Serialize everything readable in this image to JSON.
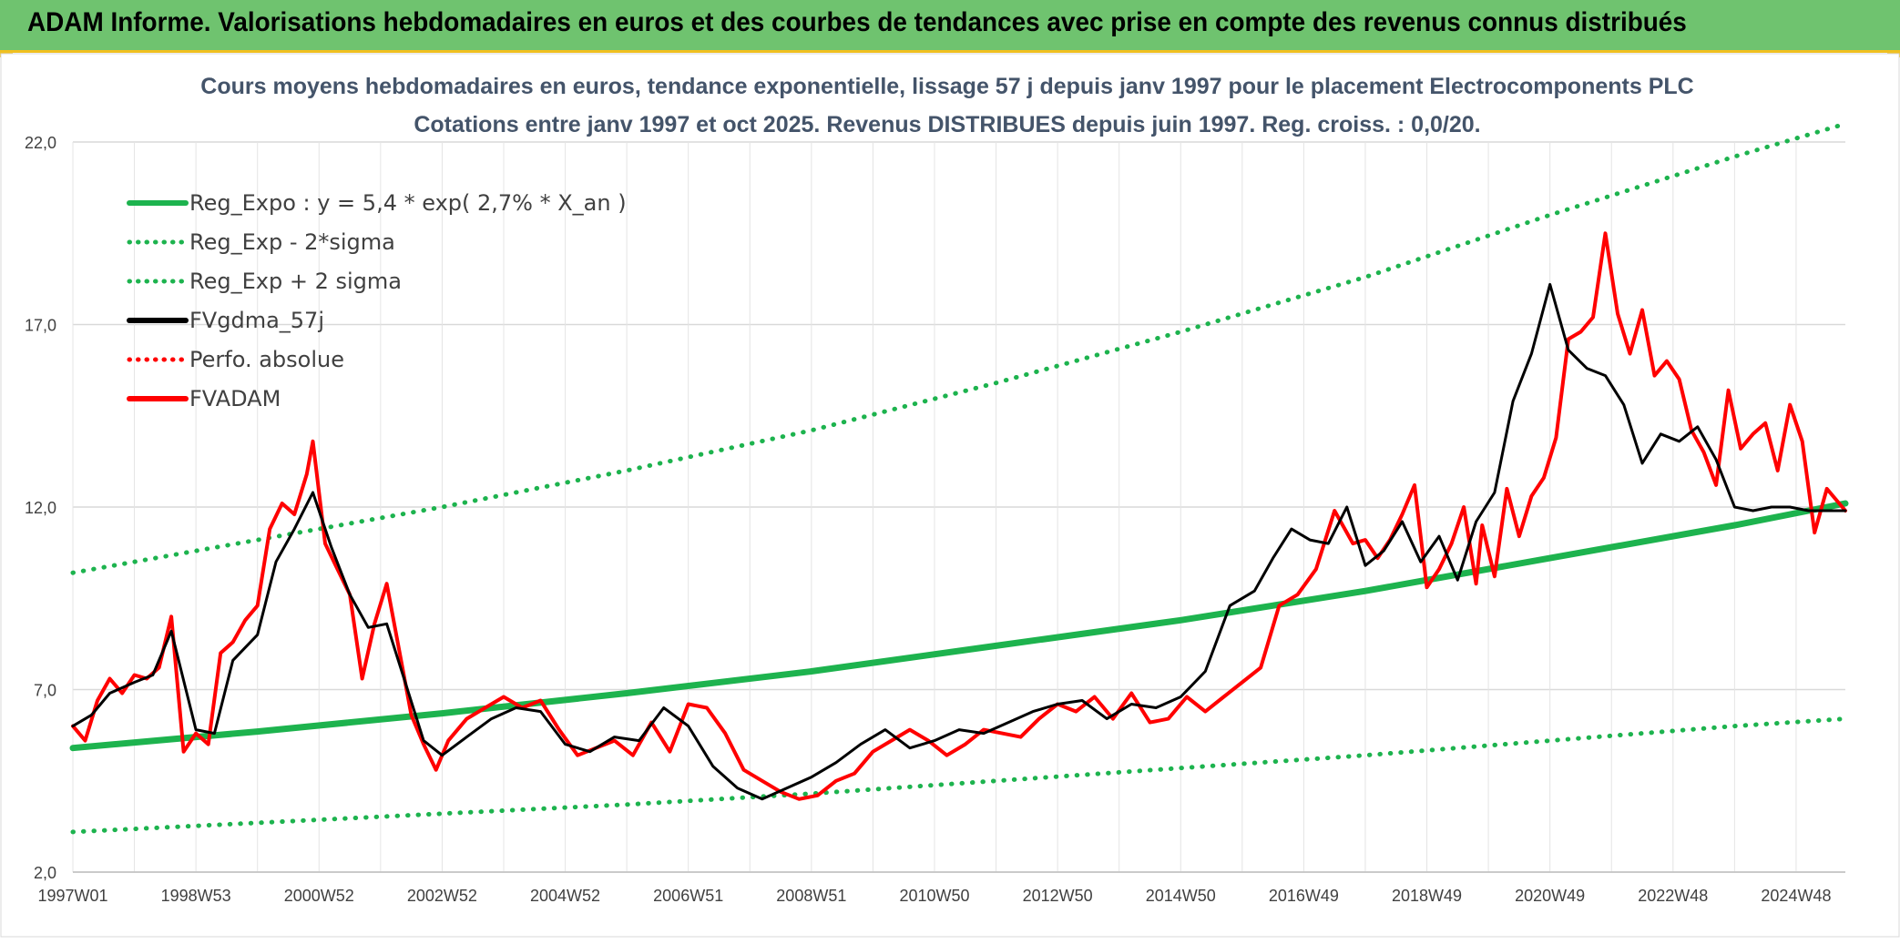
{
  "banner": {
    "title": "ADAM Informe. Valorisations hebdomadaires en euros et des courbes de tendances avec prise en compte des revenus connus distribués"
  },
  "colors": {
    "banner_bg": "#6fc36f",
    "accent": "#f0c020",
    "trend": "#1db34e",
    "band": "#1db34e",
    "smooth": "#000000",
    "price": "#ff0000",
    "title": "#44546a",
    "grid": "#d9d9d9"
  },
  "chart_data": {
    "type": "line",
    "title": "Cours moyens hebdomadaires en euros, tendance exponentielle, lissage 57 j depuis janv 1997 pour le placement Electrocomponents PLC",
    "subtitle": "Cotations entre janv 1997 et oct 2025. Revenus DISTRIBUES depuis juin 1997. Reg. croiss. : 0,0/20.",
    "xlabel": "",
    "ylabel": "",
    "xlim": [
      1997.0,
      2025.8
    ],
    "ylim": [
      2.0,
      22.0
    ],
    "yticks": [
      2.0,
      7.0,
      12.0,
      17.0,
      22.0
    ],
    "ytick_labels": [
      "2,0",
      "7,0",
      "12,0",
      "17,0",
      "22,0"
    ],
    "xticks": [
      1997.0,
      1999.0,
      2001.0,
      2003.0,
      2005.0,
      2007.0,
      2009.0,
      2011.0,
      2013.0,
      2015.0,
      2017.0,
      2019.0,
      2021.0,
      2023.0,
      2025.0
    ],
    "xtick_labels": [
      "1997W01",
      "1998W53",
      "2000W52",
      "2002W52",
      "2004W52",
      "2006W51",
      "2008W51",
      "2010W50",
      "2012W50",
      "2014W50",
      "2016W49",
      "2018W49",
      "2020W49",
      "2022W48",
      "2024W48"
    ],
    "grid": true,
    "legend_position": "top-left",
    "series": [
      {
        "name": "Reg_Expo : y = 5,4 * exp( 2,7% *  X_an )",
        "style": "solid-thick",
        "color": "#1db34e",
        "x": [
          1997.0,
          2000.0,
          2003.0,
          2006.0,
          2009.0,
          2012.0,
          2015.0,
          2018.0,
          2021.0,
          2024.0,
          2025.8
        ],
        "values": [
          5.4,
          5.85,
          6.35,
          6.9,
          7.5,
          8.2,
          8.9,
          9.7,
          10.6,
          11.5,
          12.1
        ]
      },
      {
        "name": "Reg_Exp - 2*sigma",
        "style": "dotted",
        "color": "#1db34e",
        "x": [
          1997.0,
          2000.0,
          2003.0,
          2006.0,
          2009.0,
          2012.0,
          2015.0,
          2018.0,
          2021.0,
          2024.0,
          2025.8
        ],
        "values": [
          3.1,
          3.35,
          3.6,
          3.85,
          4.15,
          4.5,
          4.85,
          5.2,
          5.6,
          6.0,
          6.2
        ]
      },
      {
        "name": "Reg_Exp + 2 sigma",
        "style": "dotted",
        "color": "#1db34e",
        "x": [
          1997.0,
          2000.0,
          2003.0,
          2006.0,
          2009.0,
          2012.0,
          2015.0,
          2018.0,
          2021.0,
          2024.0,
          2025.8
        ],
        "values": [
          10.2,
          11.1,
          12.0,
          13.0,
          14.1,
          15.4,
          16.8,
          18.3,
          20.0,
          21.6,
          22.5
        ]
      },
      {
        "name": "FVgdma_57j",
        "style": "solid",
        "color": "#000000",
        "x": [
          1997.0,
          1997.3,
          1997.6,
          1998.0,
          1998.3,
          1998.6,
          1999.0,
          1999.3,
          1999.6,
          2000.0,
          2000.3,
          2000.6,
          2000.9,
          2001.2,
          2001.5,
          2001.8,
          2002.1,
          2002.4,
          2002.7,
          2003.0,
          2003.4,
          2003.8,
          2004.2,
          2004.6,
          2005.0,
          2005.4,
          2005.8,
          2006.2,
          2006.6,
          2007.0,
          2007.4,
          2007.8,
          2008.2,
          2008.6,
          2009.0,
          2009.4,
          2009.8,
          2010.2,
          2010.6,
          2011.0,
          2011.4,
          2011.8,
          2012.2,
          2012.6,
          2013.0,
          2013.4,
          2013.8,
          2014.2,
          2014.6,
          2015.0,
          2015.4,
          2015.8,
          2016.2,
          2016.5,
          2016.8,
          2017.1,
          2017.4,
          2017.7,
          2018.0,
          2018.3,
          2018.6,
          2018.9,
          2019.2,
          2019.5,
          2019.8,
          2020.1,
          2020.4,
          2020.7,
          2021.0,
          2021.3,
          2021.6,
          2021.9,
          2022.2,
          2022.5,
          2022.8,
          2023.1,
          2023.4,
          2023.7,
          2024.0,
          2024.3,
          2024.6,
          2024.9,
          2025.2,
          2025.5,
          2025.8
        ],
        "values": [
          6.0,
          6.3,
          6.9,
          7.2,
          7.4,
          8.6,
          5.9,
          5.8,
          7.8,
          8.5,
          10.5,
          11.4,
          12.4,
          10.9,
          9.6,
          8.7,
          8.8,
          7.2,
          5.6,
          5.2,
          5.7,
          6.2,
          6.5,
          6.4,
          5.5,
          5.3,
          5.7,
          5.6,
          6.5,
          6.0,
          4.9,
          4.3,
          4.0,
          4.3,
          4.6,
          5.0,
          5.5,
          5.9,
          5.4,
          5.6,
          5.9,
          5.8,
          6.1,
          6.4,
          6.6,
          6.7,
          6.2,
          6.6,
          6.5,
          6.8,
          7.5,
          9.3,
          9.7,
          10.6,
          11.4,
          11.1,
          11.0,
          12.0,
          10.4,
          10.8,
          11.6,
          10.5,
          11.2,
          10.0,
          11.6,
          12.4,
          14.9,
          16.2,
          18.1,
          16.3,
          15.8,
          15.6,
          14.8,
          13.2,
          14.0,
          13.8,
          14.2,
          13.3,
          12.0,
          11.9,
          12.0,
          12.0,
          11.9,
          11.9,
          11.9
        ]
      },
      {
        "name": "Perfo. absolue",
        "style": "dotted",
        "color": "#ff0000",
        "x": [],
        "values": []
      },
      {
        "name": "FVADAM",
        "style": "solid-thick",
        "color": "#ff0000",
        "x": [
          1997.0,
          1997.2,
          1997.4,
          1997.6,
          1997.8,
          1998.0,
          1998.2,
          1998.4,
          1998.6,
          1998.8,
          1999.0,
          1999.2,
          1999.4,
          1999.6,
          1999.8,
          2000.0,
          2000.2,
          2000.4,
          2000.6,
          2000.8,
          2000.9,
          2001.1,
          2001.3,
          2001.5,
          2001.7,
          2001.9,
          2002.1,
          2002.3,
          2002.5,
          2002.7,
          2002.9,
          2003.1,
          2003.4,
          2003.7,
          2004.0,
          2004.3,
          2004.6,
          2004.9,
          2005.2,
          2005.5,
          2005.8,
          2006.1,
          2006.4,
          2006.7,
          2007.0,
          2007.3,
          2007.6,
          2007.9,
          2008.2,
          2008.5,
          2008.8,
          2009.1,
          2009.4,
          2009.7,
          2010.0,
          2010.3,
          2010.6,
          2010.9,
          2011.2,
          2011.5,
          2011.8,
          2012.1,
          2012.4,
          2012.7,
          2013.0,
          2013.3,
          2013.6,
          2013.9,
          2014.2,
          2014.5,
          2014.8,
          2015.1,
          2015.4,
          2015.7,
          2016.0,
          2016.3,
          2016.6,
          2016.9,
          2017.2,
          2017.5,
          2017.8,
          2018.0,
          2018.2,
          2018.4,
          2018.6,
          2018.8,
          2019.0,
          2019.2,
          2019.4,
          2019.6,
          2019.8,
          2019.9,
          2020.1,
          2020.3,
          2020.5,
          2020.7,
          2020.9,
          2021.1,
          2021.3,
          2021.5,
          2021.7,
          2021.9,
          2022.1,
          2022.3,
          2022.5,
          2022.7,
          2022.9,
          2023.1,
          2023.3,
          2023.5,
          2023.7,
          2023.9,
          2024.1,
          2024.3,
          2024.5,
          2024.7,
          2024.9,
          2025.1,
          2025.3,
          2025.5,
          2025.8
        ],
        "values": [
          6.0,
          5.6,
          6.7,
          7.3,
          6.9,
          7.4,
          7.3,
          7.6,
          9.0,
          5.3,
          5.8,
          5.5,
          8.0,
          8.3,
          8.9,
          9.3,
          11.4,
          12.1,
          11.8,
          12.9,
          13.8,
          11.0,
          10.3,
          9.6,
          7.3,
          8.8,
          9.9,
          8.1,
          6.3,
          5.5,
          4.8,
          5.6,
          6.2,
          6.5,
          6.8,
          6.5,
          6.7,
          5.9,
          5.2,
          5.4,
          5.6,
          5.2,
          6.1,
          5.3,
          6.6,
          6.5,
          5.8,
          4.8,
          4.5,
          4.2,
          4.0,
          4.1,
          4.5,
          4.7,
          5.3,
          5.6,
          5.9,
          5.6,
          5.2,
          5.5,
          5.9,
          5.8,
          5.7,
          6.2,
          6.6,
          6.4,
          6.8,
          6.2,
          6.9,
          6.1,
          6.2,
          6.8,
          6.4,
          6.8,
          7.2,
          7.6,
          9.3,
          9.6,
          10.3,
          11.9,
          11.0,
          11.1,
          10.6,
          11.1,
          11.8,
          12.6,
          9.8,
          10.3,
          11.0,
          12.0,
          9.9,
          11.5,
          10.1,
          12.5,
          11.2,
          12.3,
          12.8,
          13.9,
          16.6,
          16.8,
          17.2,
          19.5,
          17.3,
          16.2,
          17.4,
          15.6,
          16.0,
          15.5,
          14.1,
          13.5,
          12.6,
          15.2,
          13.6,
          14.0,
          14.3,
          13.0,
          14.8,
          13.8,
          11.3,
          12.5,
          11.9
        ]
      }
    ]
  }
}
